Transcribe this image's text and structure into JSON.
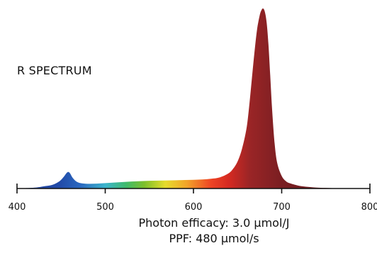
{
  "chart_data": {
    "type": "area",
    "title": "R SPECTRUM",
    "xlabel": "",
    "ylabel": "",
    "xlim": [
      400,
      800
    ],
    "ylim": [
      0,
      1
    ],
    "x_ticks": [
      400,
      500,
      600,
      700,
      800
    ],
    "grid": false,
    "legend": "none",
    "series": [
      {
        "x": [
          400,
          420,
          430,
          440,
          448,
          453,
          456,
          458,
          460,
          463,
          467,
          472,
          480,
          490,
          500,
          510,
          520,
          530,
          540,
          550,
          560,
          570,
          580,
          590,
          600,
          610,
          620,
          630,
          640,
          645,
          650,
          655,
          660,
          663,
          666,
          669,
          672,
          675,
          677,
          679,
          681,
          683,
          685,
          687,
          689,
          692,
          695,
          700,
          705,
          710,
          720,
          730,
          740,
          760,
          780,
          800
        ],
        "y": [
          0.0,
          0.005,
          0.012,
          0.02,
          0.04,
          0.065,
          0.085,
          0.092,
          0.085,
          0.06,
          0.04,
          0.03,
          0.026,
          0.027,
          0.03,
          0.033,
          0.036,
          0.039,
          0.041,
          0.043,
          0.044,
          0.045,
          0.046,
          0.047,
          0.048,
          0.05,
          0.054,
          0.062,
          0.085,
          0.11,
          0.15,
          0.22,
          0.33,
          0.45,
          0.6,
          0.75,
          0.88,
          0.96,
          0.99,
          1.0,
          0.98,
          0.92,
          0.8,
          0.63,
          0.45,
          0.25,
          0.14,
          0.07,
          0.04,
          0.028,
          0.015,
          0.009,
          0.005,
          0.002,
          0.001,
          0.0
        ]
      }
    ]
  },
  "captions": {
    "efficacy": "Photon efficacy: 3.0 μmol/J",
    "ppf": "PPF: 480 μmol/s"
  }
}
